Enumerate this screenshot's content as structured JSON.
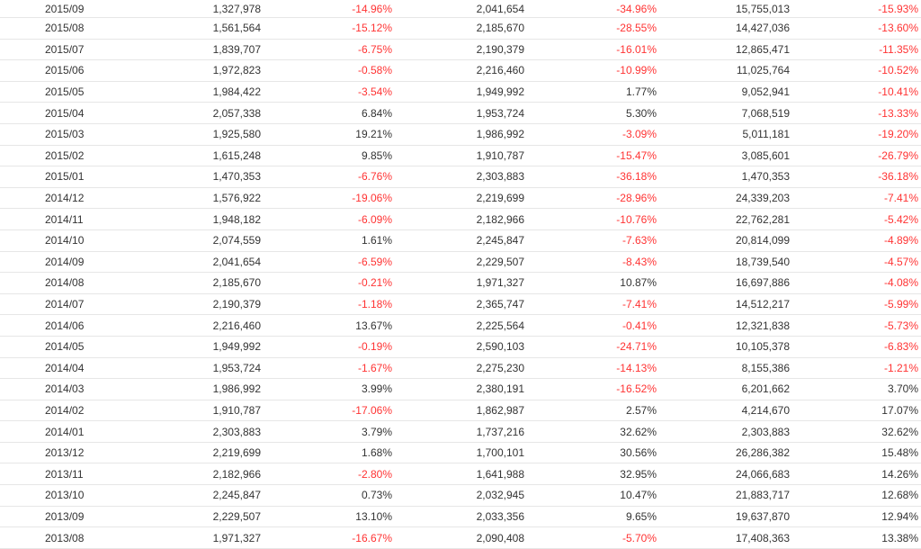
{
  "colors": {
    "negative": "#ff3333",
    "positive": "#333333",
    "row_border": "#e6e6e6"
  },
  "rows": [
    {
      "month": "2015/09",
      "v1": "1,327,978",
      "p1": "-14.96%",
      "v2": "2,041,654",
      "p2": "-34.96%",
      "v3": "15,755,013",
      "p3": "-15.93%"
    },
    {
      "month": "2015/08",
      "v1": "1,561,564",
      "p1": "-15.12%",
      "v2": "2,185,670",
      "p2": "-28.55%",
      "v3": "14,427,036",
      "p3": "-13.60%"
    },
    {
      "month": "2015/07",
      "v1": "1,839,707",
      "p1": "-6.75%",
      "v2": "2,190,379",
      "p2": "-16.01%",
      "v3": "12,865,471",
      "p3": "-11.35%"
    },
    {
      "month": "2015/06",
      "v1": "1,972,823",
      "p1": "-0.58%",
      "v2": "2,216,460",
      "p2": "-10.99%",
      "v3": "11,025,764",
      "p3": "-10.52%"
    },
    {
      "month": "2015/05",
      "v1": "1,984,422",
      "p1": "-3.54%",
      "v2": "1,949,992",
      "p2": "1.77%",
      "v3": "9,052,941",
      "p3": "-10.41%"
    },
    {
      "month": "2015/04",
      "v1": "2,057,338",
      "p1": "6.84%",
      "v2": "1,953,724",
      "p2": "5.30%",
      "v3": "7,068,519",
      "p3": "-13.33%"
    },
    {
      "month": "2015/03",
      "v1": "1,925,580",
      "p1": "19.21%",
      "v2": "1,986,992",
      "p2": "-3.09%",
      "v3": "5,011,181",
      "p3": "-19.20%"
    },
    {
      "month": "2015/02",
      "v1": "1,615,248",
      "p1": "9.85%",
      "v2": "1,910,787",
      "p2": "-15.47%",
      "v3": "3,085,601",
      "p3": "-26.79%"
    },
    {
      "month": "2015/01",
      "v1": "1,470,353",
      "p1": "-6.76%",
      "v2": "2,303,883",
      "p2": "-36.18%",
      "v3": "1,470,353",
      "p3": "-36.18%"
    },
    {
      "month": "2014/12",
      "v1": "1,576,922",
      "p1": "-19.06%",
      "v2": "2,219,699",
      "p2": "-28.96%",
      "v3": "24,339,203",
      "p3": "-7.41%"
    },
    {
      "month": "2014/11",
      "v1": "1,948,182",
      "p1": "-6.09%",
      "v2": "2,182,966",
      "p2": "-10.76%",
      "v3": "22,762,281",
      "p3": "-5.42%"
    },
    {
      "month": "2014/10",
      "v1": "2,074,559",
      "p1": "1.61%",
      "v2": "2,245,847",
      "p2": "-7.63%",
      "v3": "20,814,099",
      "p3": "-4.89%"
    },
    {
      "month": "2014/09",
      "v1": "2,041,654",
      "p1": "-6.59%",
      "v2": "2,229,507",
      "p2": "-8.43%",
      "v3": "18,739,540",
      "p3": "-4.57%"
    },
    {
      "month": "2014/08",
      "v1": "2,185,670",
      "p1": "-0.21%",
      "v2": "1,971,327",
      "p2": "10.87%",
      "v3": "16,697,886",
      "p3": "-4.08%"
    },
    {
      "month": "2014/07",
      "v1": "2,190,379",
      "p1": "-1.18%",
      "v2": "2,365,747",
      "p2": "-7.41%",
      "v3": "14,512,217",
      "p3": "-5.99%"
    },
    {
      "month": "2014/06",
      "v1": "2,216,460",
      "p1": "13.67%",
      "v2": "2,225,564",
      "p2": "-0.41%",
      "v3": "12,321,838",
      "p3": "-5.73%"
    },
    {
      "month": "2014/05",
      "v1": "1,949,992",
      "p1": "-0.19%",
      "v2": "2,590,103",
      "p2": "-24.71%",
      "v3": "10,105,378",
      "p3": "-6.83%"
    },
    {
      "month": "2014/04",
      "v1": "1,953,724",
      "p1": "-1.67%",
      "v2": "2,275,230",
      "p2": "-14.13%",
      "v3": "8,155,386",
      "p3": "-1.21%"
    },
    {
      "month": "2014/03",
      "v1": "1,986,992",
      "p1": "3.99%",
      "v2": "2,380,191",
      "p2": "-16.52%",
      "v3": "6,201,662",
      "p3": "3.70%"
    },
    {
      "month": "2014/02",
      "v1": "1,910,787",
      "p1": "-17.06%",
      "v2": "1,862,987",
      "p2": "2.57%",
      "v3": "4,214,670",
      "p3": "17.07%"
    },
    {
      "month": "2014/01",
      "v1": "2,303,883",
      "p1": "3.79%",
      "v2": "1,737,216",
      "p2": "32.62%",
      "v3": "2,303,883",
      "p3": "32.62%"
    },
    {
      "month": "2013/12",
      "v1": "2,219,699",
      "p1": "1.68%",
      "v2": "1,700,101",
      "p2": "30.56%",
      "v3": "26,286,382",
      "p3": "15.48%"
    },
    {
      "month": "2013/11",
      "v1": "2,182,966",
      "p1": "-2.80%",
      "v2": "1,641,988",
      "p2": "32.95%",
      "v3": "24,066,683",
      "p3": "14.26%"
    },
    {
      "month": "2013/10",
      "v1": "2,245,847",
      "p1": "0.73%",
      "v2": "2,032,945",
      "p2": "10.47%",
      "v3": "21,883,717",
      "p3": "12.68%"
    },
    {
      "month": "2013/09",
      "v1": "2,229,507",
      "p1": "13.10%",
      "v2": "2,033,356",
      "p2": "9.65%",
      "v3": "19,637,870",
      "p3": "12.94%"
    },
    {
      "month": "2013/08",
      "v1": "1,971,327",
      "p1": "-16.67%",
      "v2": "2,090,408",
      "p2": "-5.70%",
      "v3": "17,408,363",
      "p3": "13.38%"
    }
  ]
}
